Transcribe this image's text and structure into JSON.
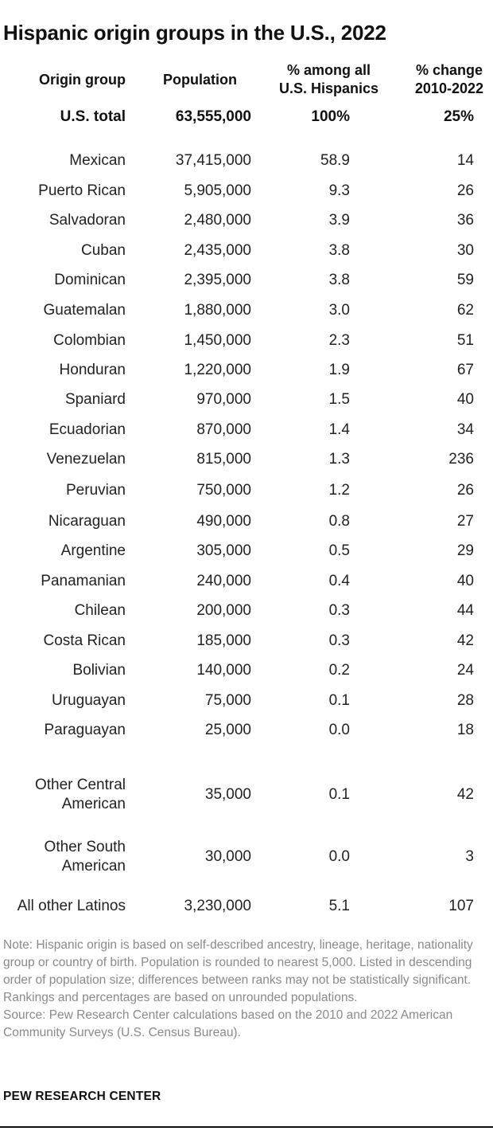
{
  "title": "Hispanic origin groups in the U.S., 2022",
  "headers": {
    "origin": "Origin group",
    "population": "Population",
    "share_line1": "% among all",
    "share_line2": "U.S. Hispanics",
    "change_line1": "% change",
    "change_line2": "2010-2022"
  },
  "total": {
    "name": "U.S. total",
    "population": "63,555,000",
    "share": "100%",
    "change": "25%"
  },
  "rows": [
    {
      "name": "Mexican",
      "population": "37,415,000",
      "share": "58.9",
      "change": "14"
    },
    {
      "name": "Puerto Rican",
      "population": "5,905,000",
      "share": "9.3",
      "change": "26"
    },
    {
      "name": "Salvadoran",
      "population": "2,480,000",
      "share": "3.9",
      "change": "36"
    },
    {
      "name": "Cuban",
      "population": "2,435,000",
      "share": "3.8",
      "change": "30"
    },
    {
      "name": "Dominican",
      "population": "2,395,000",
      "share": "3.8",
      "change": "59"
    },
    {
      "name": "Guatemalan",
      "population": "1,880,000",
      "share": "3.0",
      "change": "62"
    },
    {
      "name": "Colombian",
      "population": "1,450,000",
      "share": "2.3",
      "change": "51"
    },
    {
      "name": "Honduran",
      "population": "1,220,000",
      "share": "1.9",
      "change": "67"
    },
    {
      "name": "Spaniard",
      "population": "970,000",
      "share": "1.5",
      "change": "40"
    },
    {
      "name": "Ecuadorian",
      "population": "870,000",
      "share": "1.4",
      "change": "34"
    },
    {
      "name": "Venezuelan",
      "population": "815,000",
      "share": "1.3",
      "change": "236"
    },
    {
      "name": "Peruvian",
      "population": "750,000",
      "share": "1.2",
      "change": "26"
    },
    {
      "name": "Nicaraguan",
      "population": "490,000",
      "share": "0.8",
      "change": "27"
    },
    {
      "name": "Argentine",
      "population": "305,000",
      "share": "0.5",
      "change": "29"
    },
    {
      "name": "Panamanian",
      "population": "240,000",
      "share": "0.4",
      "change": "40"
    },
    {
      "name": "Chilean",
      "population": "200,000",
      "share": "0.3",
      "change": "44"
    },
    {
      "name": "Costa Rican",
      "population": "185,000",
      "share": "0.3",
      "change": "42"
    },
    {
      "name": "Bolivian",
      "population": "140,000",
      "share": "0.2",
      "change": "24"
    },
    {
      "name": "Uruguayan",
      "population": "75,000",
      "share": "0.1",
      "change": "28"
    },
    {
      "name": "Paraguayan",
      "population": "25,000",
      "share": "0.0",
      "change": "18"
    },
    {
      "name": "Other Central American",
      "population": "35,000",
      "share": "0.1",
      "change": "42"
    },
    {
      "name": "Other South American",
      "population": "30,000",
      "share": "0.0",
      "change": "3"
    },
    {
      "name": "All other Latinos",
      "population": "3,230,000",
      "share": "5.1",
      "change": "107"
    }
  ],
  "note": "Note: Hispanic origin is based on self-described ancestry, lineage, heritage, nationality group or country of birth. Population is rounded to nearest 5,000. Listed in descending order of population size; differences between ranks may not be statistically significant. Rankings and percentages are based on unrounded populations.",
  "source": "Source: Pew Research Center calculations based on the 2010 and 2022 American Community Surveys (U.S. Census Bureau).",
  "brand": "PEW RESEARCH CENTER"
}
